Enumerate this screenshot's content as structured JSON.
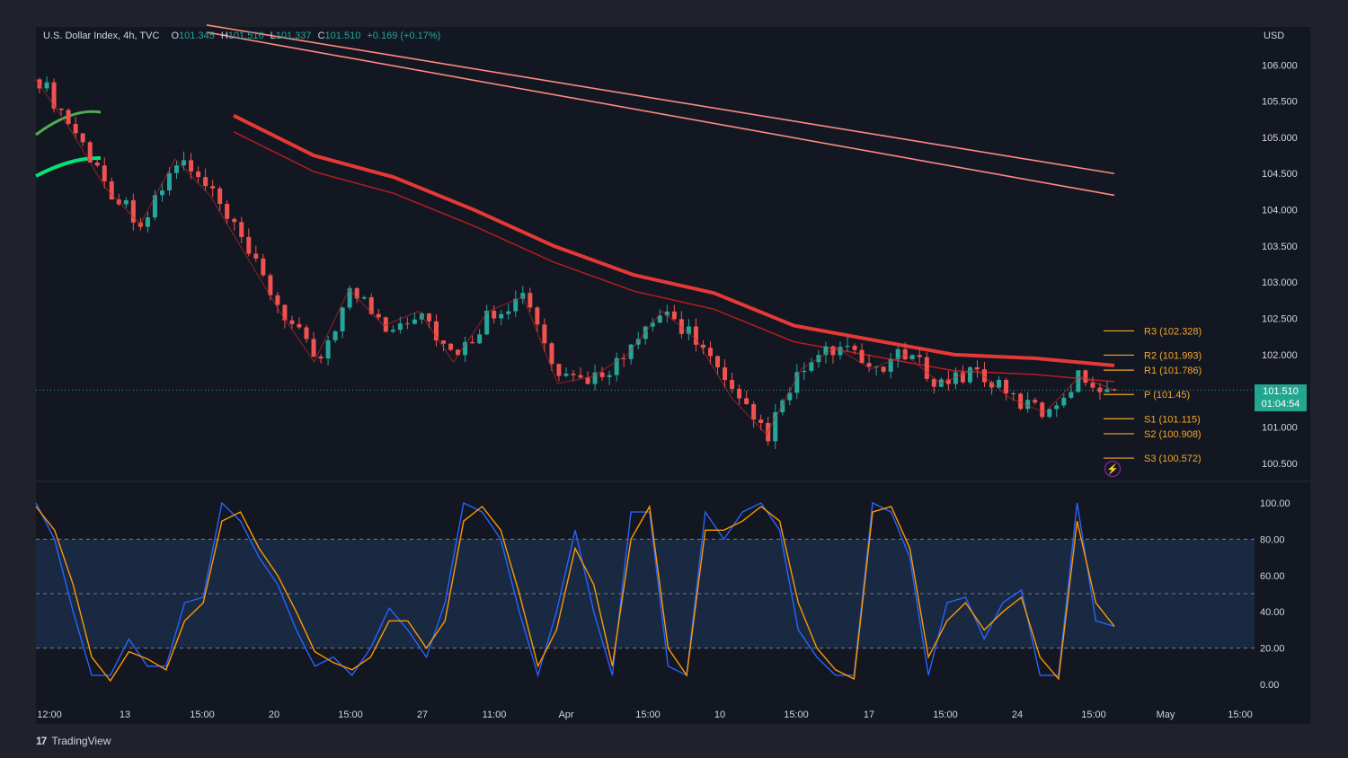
{
  "header": {
    "symbol": "U.S. Dollar Index, 4h, TVC",
    "open_label": "O",
    "open": "101.345",
    "high_label": "H",
    "high": "101.516",
    "low_label": "L",
    "low": "101.337",
    "close_label": "C",
    "close": "101.510",
    "change": "+0.169 (+0.17%)"
  },
  "currency": "USD",
  "brand": {
    "logo": "17",
    "name": "TradingView"
  },
  "last_price": {
    "price": "101.510",
    "countdown": "01:04:54"
  },
  "colors": {
    "background": "#131722",
    "frame": "#1f222b",
    "up": "#26a69a",
    "down": "#ef5350",
    "ma_red": "#e53935",
    "ma_green": "#4caf50",
    "stoch_k": "#2962ff",
    "stoch_d": "#ff9800",
    "pivot": "#f5a623",
    "upper_band": "#ff8a80",
    "stoch_band": "#1c3556"
  },
  "icons": {
    "alert": "lightning-icon"
  },
  "chart_data": [
    {
      "type": "line",
      "name": "price_panel",
      "ylim": [
        100.3,
        106.4
      ],
      "y_ticks": [
        "106.000",
        "105.500",
        "105.000",
        "104.500",
        "104.000",
        "103.500",
        "103.000",
        "102.500",
        "102.000",
        "101.000",
        "100.500"
      ],
      "x_ticks": [
        "12:00",
        "13",
        "15:00",
        "20",
        "15:00",
        "27",
        "11:00",
        "Apr",
        "15:00",
        "10",
        "15:00",
        "17",
        "15:00",
        "24",
        "15:00",
        "May",
        "15:00"
      ],
      "price_series": [
        105.8,
        105.1,
        104.3,
        103.8,
        104.7,
        104.2,
        103.4,
        102.6,
        101.9,
        102.9,
        102.4,
        102.6,
        101.9,
        102.6,
        102.8,
        101.6,
        101.7,
        102.0,
        102.6,
        102.2,
        101.4,
        100.9,
        101.8,
        102.1,
        101.8,
        102.0,
        101.6,
        101.8,
        101.4,
        101.2,
        101.7,
        101.51
      ],
      "upper_bands": [
        {
          "from": 106.55,
          "to": 104.5
        },
        {
          "from": 106.45,
          "to": 104.2
        }
      ],
      "red_ma": [
        105.3,
        104.75,
        104.45,
        104.0,
        103.5,
        103.1,
        102.85,
        102.4,
        102.2,
        102.0,
        101.95,
        101.85
      ],
      "pivots": [
        {
          "label": "R3",
          "value": "102.328"
        },
        {
          "label": "R2",
          "value": "101.993"
        },
        {
          "label": "R1",
          "value": "101.786"
        },
        {
          "label": "P",
          "value": "101.45"
        },
        {
          "label": "S1",
          "value": "101.115"
        },
        {
          "label": "S2",
          "value": "100.908"
        },
        {
          "label": "S3",
          "value": "100.572"
        }
      ]
    },
    {
      "type": "line",
      "name": "stochastic",
      "ylim": [
        0,
        100
      ],
      "y_ticks": [
        "100.00",
        "80.00",
        "60.00",
        "40.00",
        "20.00",
        "0.00"
      ],
      "band": [
        20,
        80
      ],
      "midline": 50,
      "series": [
        {
          "name": "%K",
          "values": [
            100,
            80,
            40,
            5,
            5,
            25,
            10,
            10,
            45,
            48,
            100,
            90,
            70,
            55,
            30,
            10,
            15,
            5,
            20,
            42,
            30,
            15,
            45,
            100,
            95,
            80,
            40,
            5,
            40,
            85,
            40,
            5,
            95,
            95,
            10,
            5,
            95,
            80,
            95,
            100,
            85,
            30,
            15,
            5,
            5,
            100,
            95,
            70,
            5,
            45,
            48,
            25,
            45,
            52,
            5,
            5,
            100,
            35,
            32
          ]
        },
        {
          "name": "%D",
          "values": [
            98,
            85,
            55,
            15,
            2,
            18,
            14,
            8,
            35,
            45,
            90,
            95,
            75,
            60,
            40,
            18,
            12,
            8,
            15,
            35,
            35,
            20,
            35,
            90,
            98,
            85,
            50,
            10,
            30,
            75,
            55,
            10,
            80,
            98,
            20,
            5,
            85,
            85,
            90,
            98,
            90,
            45,
            20,
            8,
            3,
            95,
            98,
            75,
            15,
            35,
            45,
            30,
            40,
            48,
            15,
            3,
            90,
            45,
            32
          ]
        }
      ]
    }
  ]
}
